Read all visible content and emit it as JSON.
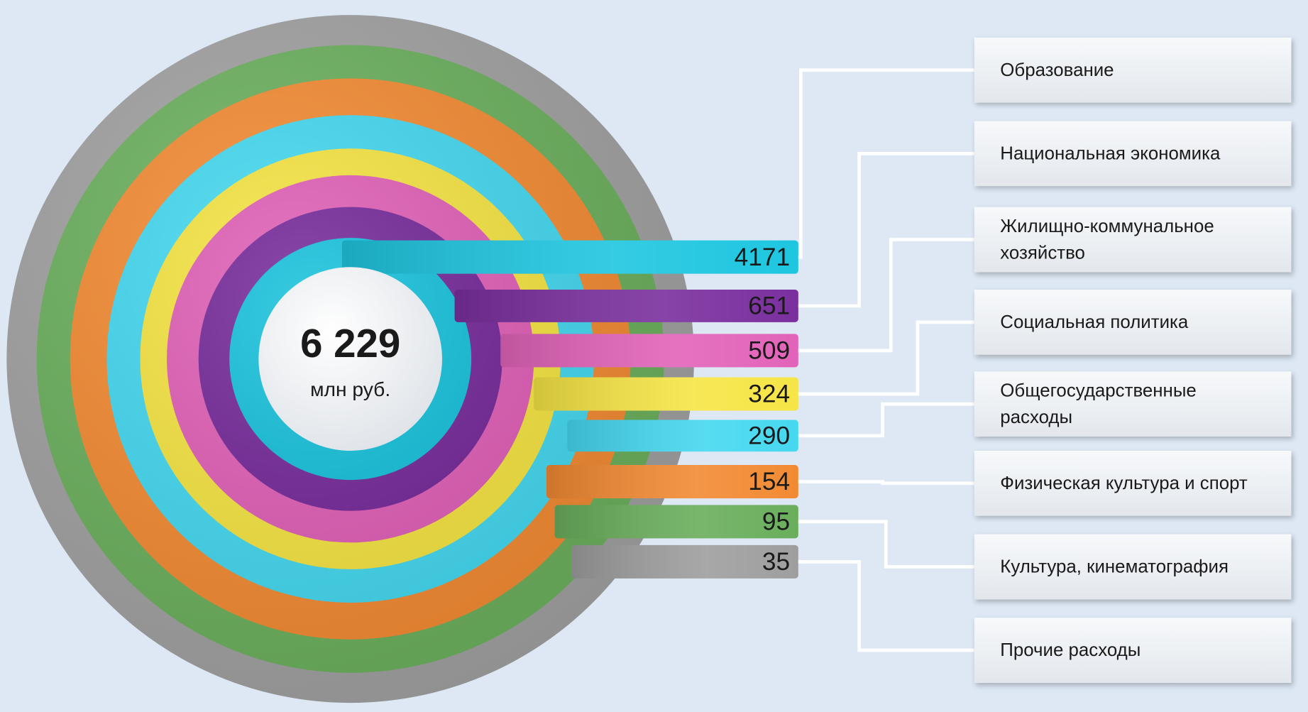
{
  "chart_data": {
    "type": "radial-bar",
    "total": 6229,
    "total_label": "6 229",
    "total_unit": "млн руб.",
    "categories": [
      "Образование",
      "Национальная экономика",
      "Жилищно-коммунальное хозяйство",
      "Социальная политика",
      "Общегосударственные расходы",
      "Физическая культура и спорт",
      "Культура, кинематография",
      "Прочие расходы"
    ],
    "values": [
      4171,
      651,
      509,
      324,
      290,
      154,
      95,
      35
    ],
    "colors": [
      "#1ec6e0",
      "#7a2f9e",
      "#e263b9",
      "#f6e545",
      "#45d8f0",
      "#f28a33",
      "#6aae5c",
      "#9e9e9e"
    ]
  }
}
